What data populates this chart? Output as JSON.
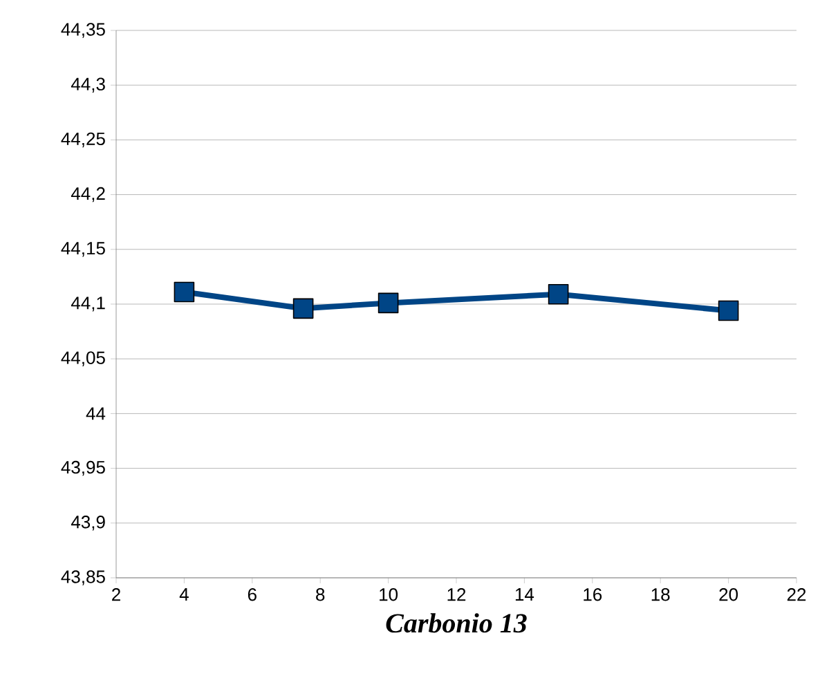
{
  "chart_data": {
    "type": "line",
    "xlabel": "Carbonio 13",
    "x": [
      4,
      7.5,
      10,
      15,
      20
    ],
    "series": [
      {
        "color": "#004586",
        "values": [
          44.111,
          44.096,
          44.101,
          44.109,
          44.094
        ]
      }
    ],
    "xlim": [
      2,
      22
    ],
    "xticks": [
      2,
      4,
      6,
      8,
      10,
      12,
      14,
      16,
      18,
      20,
      22
    ],
    "ylim": [
      43.85,
      44.35
    ],
    "yticks": [
      {
        "value": 43.85,
        "label": "43,85"
      },
      {
        "value": 43.9,
        "label": "43,9"
      },
      {
        "value": 43.95,
        "label": "43,95"
      },
      {
        "value": 44,
        "label": "44"
      },
      {
        "value": 44.05,
        "label": "44,05"
      },
      {
        "value": 44.1,
        "label": "44,1"
      },
      {
        "value": 44.15,
        "label": "44,15"
      },
      {
        "value": 44.2,
        "label": "44,2"
      },
      {
        "value": 44.25,
        "label": "44,25"
      },
      {
        "value": 44.3,
        "label": "44,3"
      },
      {
        "value": 44.35,
        "label": "44,35"
      }
    ],
    "grid": "y",
    "marker": "square",
    "line_style": "solid"
  }
}
